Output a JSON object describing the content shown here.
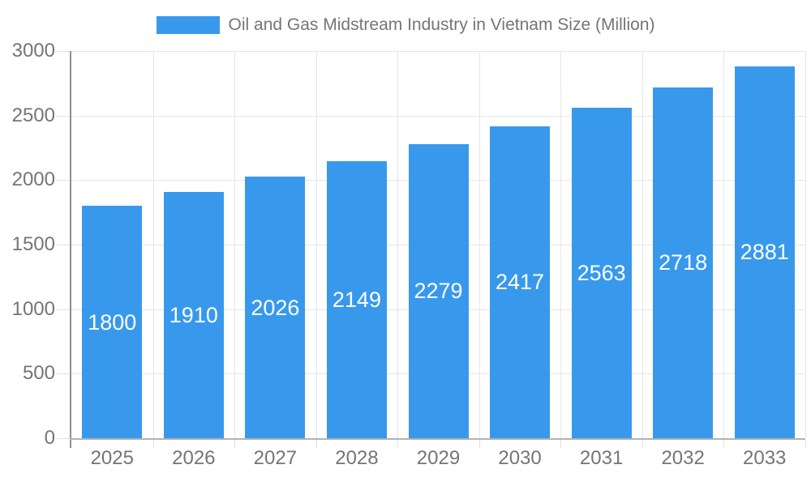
{
  "legend": {
    "label": "Oil and Gas Midstream Industry in Vietnam Size (Million)",
    "swatch_color": "#3899EC"
  },
  "chart_data": {
    "type": "bar",
    "title": "Oil and Gas Midstream Industry in Vietnam Size (Million)",
    "categories": [
      "2025",
      "2026",
      "2027",
      "2028",
      "2029",
      "2030",
      "2031",
      "2032",
      "2033"
    ],
    "values": [
      1800,
      1910,
      2026,
      2149,
      2279,
      2417,
      2563,
      2718,
      2881
    ],
    "xlabel": "",
    "ylabel": "",
    "ylim": [
      0,
      3000
    ],
    "yticks": [
      0,
      500,
      1000,
      1500,
      2000,
      2500,
      3000
    ],
    "grid": true,
    "legend_position": "top",
    "bar_color": "#3899EC",
    "value_label_color": "#ffffff",
    "axis_text_color": "#757575",
    "gridline_color": "#e6e6e6"
  }
}
